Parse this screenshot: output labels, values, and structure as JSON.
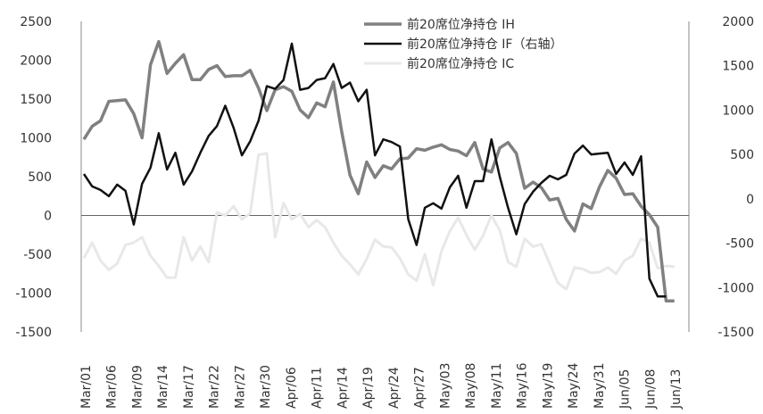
{
  "chart_data": {
    "type": "line",
    "title": "",
    "legend_position": "top-center",
    "grid": false,
    "x": [
      "Mar/01",
      "Mar/02",
      "Mar/05",
      "Mar/06",
      "Mar/07",
      "Mar/08",
      "Mar/09",
      "Mar/12",
      "Mar/13",
      "Mar/14",
      "Mar/15",
      "Mar/16",
      "Mar/19",
      "Mar/20",
      "Mar/21",
      "Mar/22",
      "Mar/23",
      "Mar/26",
      "Mar/27",
      "Mar/28",
      "Mar/29",
      "Mar/30",
      "Apr/02",
      "Apr/03",
      "Apr/04",
      "Apr/09",
      "Apr/10",
      "Apr/11",
      "Apr/12",
      "Apr/13",
      "Apr/16",
      "Apr/17",
      "Apr/18",
      "Apr/19",
      "Apr/20",
      "Apr/23",
      "Apr/24",
      "Apr/25",
      "Apr/26",
      "Apr/27",
      "May/02",
      "May/03",
      "May/04",
      "May/07",
      "May/08",
      "May/09",
      "May/10",
      "May/11",
      "May/14",
      "May/15",
      "May/16",
      "May/17",
      "May/18",
      "May/21",
      "May/22",
      "May/23",
      "May/24",
      "May/25",
      "May/28",
      "May/29",
      "May/30",
      "May/31",
      "Jun/01",
      "Jun/04",
      "Jun/05",
      "Jun/06",
      "Jun/07",
      "Jun/08",
      "Jun/11",
      "Jun/12",
      "Jun/13",
      "Jun/14",
      "Jun/15"
    ],
    "x_tick_labels": [
      "Mar/01",
      "Mar/06",
      "Mar/09",
      "Mar/14",
      "Mar/17",
      "Mar/22",
      "Mar/27",
      "Mar/30",
      "Apr/06",
      "Apr/11",
      "Apr/14",
      "Apr/19",
      "Apr/24",
      "Apr/27",
      "May/03",
      "May/08",
      "May/11",
      "May/16",
      "May/19",
      "May/24",
      "May/31",
      "Jun/05",
      "Jun/08",
      "Jun/13"
    ],
    "y_left": {
      "range": [
        -1500,
        2500
      ],
      "ticks": [
        -1500,
        -1000,
        -500,
        0,
        500,
        1000,
        1500,
        2000,
        2500
      ]
    },
    "y_right": {
      "range": [
        -1500,
        2000
      ],
      "ticks": [
        -1500,
        -1000,
        -500,
        0,
        500,
        1000,
        1500,
        2000
      ]
    },
    "series": [
      {
        "name": "前20席位净持仓 IH",
        "axis": "left",
        "color": "#808080",
        "values": [
          980,
          1150,
          1220,
          1470,
          1480,
          1490,
          1310,
          1000,
          1940,
          2240,
          1830,
          1960,
          2070,
          1750,
          1750,
          1880,
          1930,
          1790,
          1800,
          1800,
          1870,
          1640,
          1350,
          1620,
          1660,
          1600,
          1360,
          1260,
          1450,
          1400,
          1720,
          1080,
          520,
          280,
          690,
          490,
          640,
          600,
          730,
          740,
          860,
          840,
          880,
          910,
          850,
          830,
          770,
          940,
          600,
          560,
          870,
          940,
          800,
          350,
          430,
          360,
          200,
          220,
          -50,
          -200,
          150,
          90,
          370,
          580,
          480,
          270,
          280,
          120,
          10,
          -150,
          -1100,
          -1100,
          -1100
        ],
        "visible_points": 72
      },
      {
        "name": "前20席位净持仓 IF（右轴）",
        "axis": "right",
        "color": "#111111",
        "values": [
          280,
          140,
          100,
          30,
          160,
          90,
          -290,
          170,
          350,
          740,
          330,
          520,
          160,
          310,
          520,
          710,
          820,
          1050,
          800,
          490,
          650,
          880,
          1270,
          1240,
          1340,
          1750,
          1230,
          1250,
          1340,
          1360,
          1520,
          1250,
          1310,
          1100,
          1230,
          490,
          670,
          640,
          590,
          -230,
          -520,
          -100,
          -50,
          -110,
          130,
          260,
          -100,
          200,
          200,
          670,
          250,
          -100,
          -400,
          -60,
          80,
          180,
          260,
          220,
          270,
          510,
          600,
          500,
          510,
          520,
          280,
          410,
          270,
          480,
          -900,
          -1100,
          -1100,
          -1100,
          -1100
        ],
        "visible_points": 71
      },
      {
        "name": "前20席位净持仓 IC",
        "axis": "left",
        "color": "#e8e8e8",
        "values": [
          -550,
          -350,
          -580,
          -700,
          -620,
          -380,
          -350,
          -280,
          -520,
          -650,
          -800,
          -800,
          -280,
          -580,
          -400,
          -600,
          40,
          0,
          120,
          -50,
          30,
          780,
          800,
          -280,
          160,
          -50,
          20,
          -150,
          -60,
          -150,
          -350,
          -520,
          -630,
          -760,
          -560,
          -310,
          -400,
          -410,
          -550,
          -760,
          -840,
          -500,
          -900,
          -460,
          -200,
          -30,
          -250,
          -440,
          -260,
          0,
          -190,
          -600,
          -660,
          -300,
          -400,
          -370,
          -620,
          -870,
          -950,
          -670,
          -690,
          -740,
          -730,
          -670,
          -750,
          -580,
          -520,
          -300,
          -350,
          -680,
          -650,
          -660,
          -660
        ],
        "visible_points": 72
      }
    ]
  }
}
